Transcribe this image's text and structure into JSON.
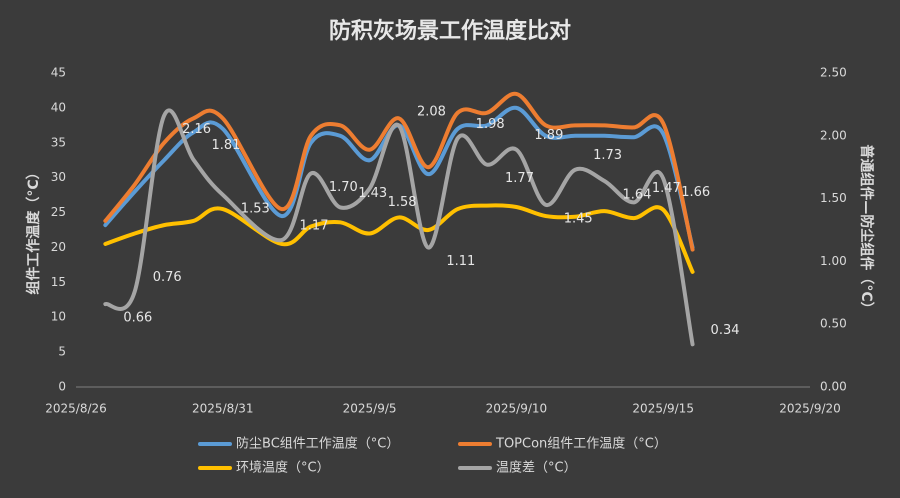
{
  "chart_data": {
    "type": "line",
    "title": "防积灰场景工作温度比对",
    "y_label": "组件工作温度（°C）",
    "y2_label": "普通组件—防尘组件（°C）",
    "x": [
      "2025/8/27",
      "2025/8/28",
      "2025/8/29",
      "2025/8/30",
      "2025/8/31",
      "2025/9/2",
      "2025/9/3",
      "2025/9/4",
      "2025/9/5",
      "2025/9/6",
      "2025/9/7",
      "2025/9/8",
      "2025/9/9",
      "2025/9/10",
      "2025/9/11",
      "2025/9/12",
      "2025/9/13",
      "2025/9/14",
      "2025/9/15",
      "2025/9/16"
    ],
    "xlim": [
      "2025/8/26",
      "2025/9/20"
    ],
    "xticks": [
      "2025/8/26",
      "2025/8/31",
      "2025/9/5",
      "2025/9/10",
      "2025/9/15",
      "2025/9/20"
    ],
    "ylim": [
      0,
      45
    ],
    "yticks": [
      0,
      5,
      10,
      15,
      20,
      25,
      30,
      35,
      40,
      45
    ],
    "y2lim": [
      0,
      2.5
    ],
    "y2ticks": [
      {
        "value": 0,
        "label": "0.00"
      },
      {
        "value": 0.5,
        "label": "0.50"
      },
      {
        "value": 1,
        "label": "1.00"
      },
      {
        "value": 1.5,
        "label": "1.50"
      },
      {
        "value": 2,
        "label": "2.00"
      },
      {
        "value": 2.5,
        "label": "2.50"
      }
    ],
    "legend": "bottom",
    "series": [
      {
        "name": "防尘BC组件工作温度（°C）",
        "color": "#5b9bd5",
        "values": [
          23.2,
          28,
          32.5,
          36.5,
          37,
          24.5,
          35,
          36,
          32.5,
          37.5,
          30.5,
          37,
          37.5,
          40,
          36,
          36,
          36,
          35.8,
          36.3,
          20
        ]
      },
      {
        "name": "TOPCon组件工作温度（°C）",
        "color": "#ed7d31",
        "values": [
          23.8,
          29,
          35,
          38.5,
          38.5,
          25.5,
          36,
          37.5,
          34,
          38.5,
          31.5,
          39.3,
          39.3,
          42,
          37.5,
          37.5,
          37.5,
          37.2,
          37.8,
          19.7
        ]
      },
      {
        "name": "环境温度（°C）",
        "color": "#ffc000",
        "values": [
          20.5,
          22,
          23.2,
          23.8,
          25.5,
          20.5,
          23,
          23.6,
          22,
          24.3,
          22.5,
          25.5,
          26,
          25.8,
          24.5,
          24.4,
          25.2,
          24.2,
          25.4,
          16.5
        ]
      },
      {
        "name": "温度差（°C）",
        "color": "#a5a5a5",
        "axis": "y2",
        "values": [
          0.66,
          0.76,
          2.16,
          1.81,
          1.53,
          1.17,
          1.7,
          1.43,
          1.58,
          2.08,
          1.11,
          1.98,
          1.77,
          1.89,
          1.45,
          1.73,
          1.64,
          1.47,
          1.66,
          0.34
        ],
        "value_labels": [
          "0.66",
          "0.76",
          "2.16",
          "1.81",
          "1.53",
          "1.17",
          "1.70",
          "1.43",
          "1.58",
          "2.08",
          "1.11",
          "1.98",
          "1.77",
          "1.89",
          "1.45",
          "1.73",
          "1.64",
          "1.47",
          "1.66",
          "0.34"
        ]
      }
    ]
  }
}
